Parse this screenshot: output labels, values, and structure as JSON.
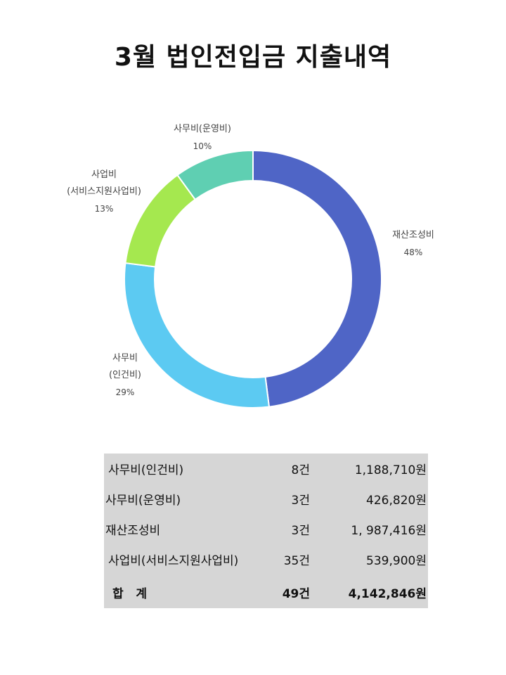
{
  "title": "3월 법인전입금 지출내역",
  "chart_data": {
    "type": "pie",
    "donut": true,
    "categories": [
      "재산조성비",
      "사무비(인건비)",
      "사업비(서비스지원사업비)",
      "사무비(운영비)"
    ],
    "values": [
      48,
      29,
      13,
      10
    ],
    "value_labels": [
      "48%",
      "29%",
      "13%",
      "10%"
    ],
    "colors": [
      "#4f65c6",
      "#5ccaf2",
      "#a5e84f",
      "#5fcfb2"
    ],
    "legend": "none"
  },
  "labels": [
    {
      "lines": [
        "재산조성비"
      ],
      "pct": "48%"
    },
    {
      "lines": [
        "사무비",
        "(인건비)"
      ],
      "pct": "29%"
    },
    {
      "lines": [
        "사업비",
        "(서비스지원사업비)"
      ],
      "pct": "13%"
    },
    {
      "lines": [
        "사무비(운영비)"
      ],
      "pct": "10%"
    }
  ],
  "table": {
    "rows": [
      {
        "name": " 사무비(인건비)",
        "count": "8건",
        "amount": "1,188,710원"
      },
      {
        "name": "사무비(운영비)",
        "count": "3건",
        "amount": "426,820원"
      },
      {
        "name": "재산조성비",
        "count": "3건",
        "amount": "1, 987,416원"
      },
      {
        "name": " 사업비(서비스지원사업비)",
        "count": "35건",
        "amount": "539,900원"
      }
    ],
    "total": {
      "name": "합   계",
      "count": "49건",
      "amount": "4,142,846원"
    }
  }
}
